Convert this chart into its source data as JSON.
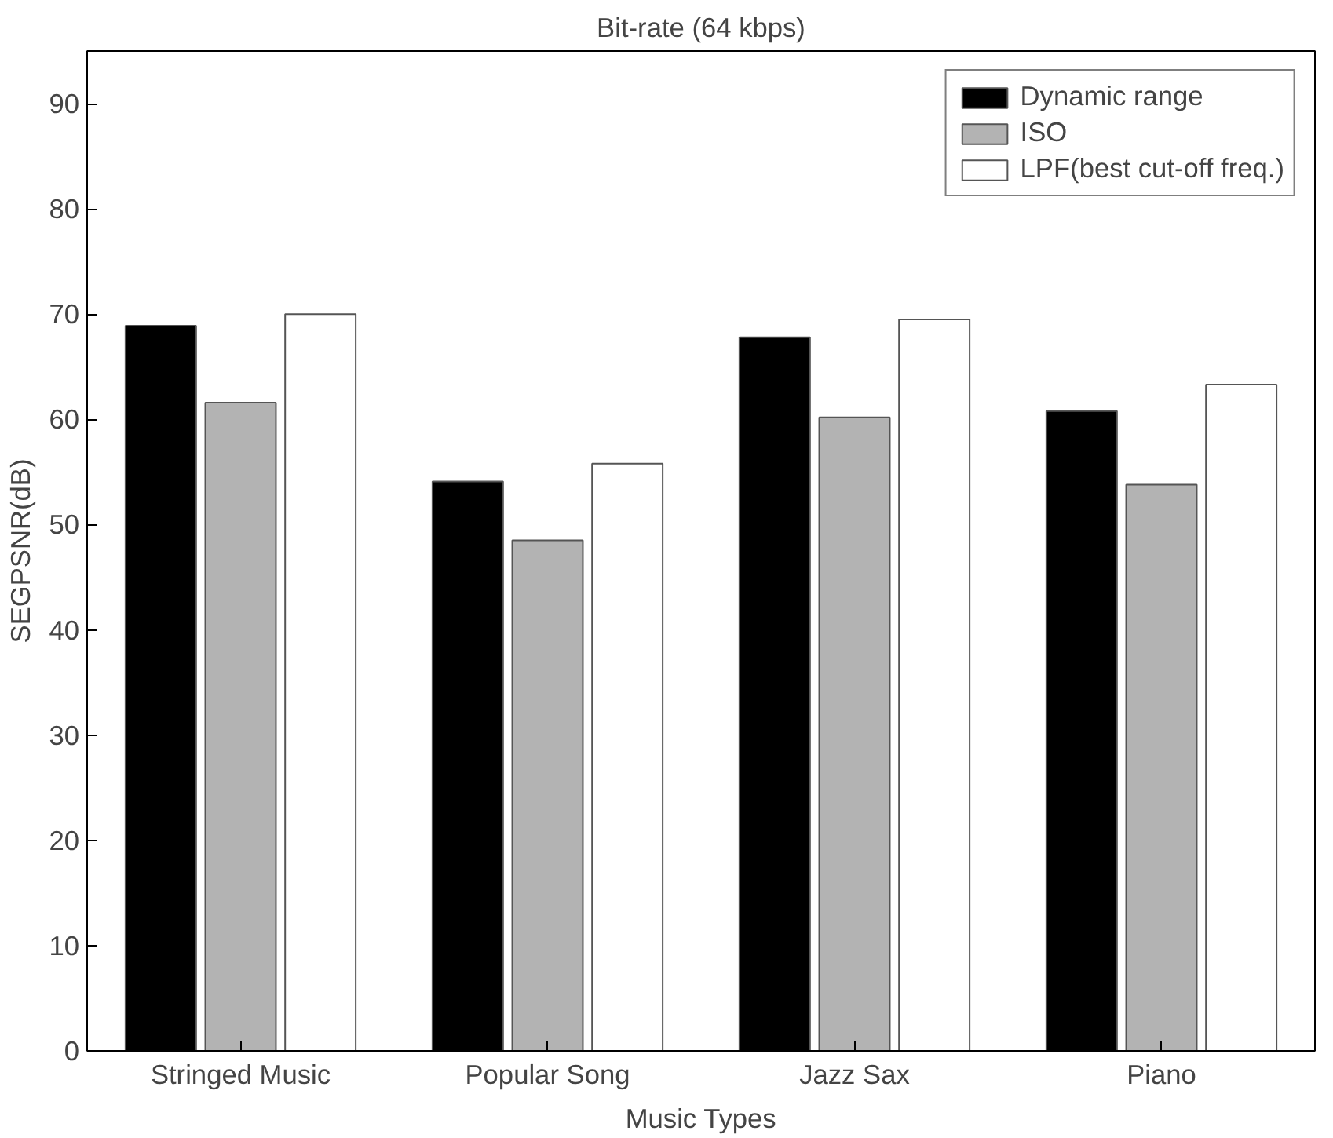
{
  "chart_data": {
    "type": "bar",
    "title": "Bit-rate (64 kbps)",
    "xlabel": "Music Types",
    "ylabel": "SEGPSNR(dB)",
    "categories": [
      "Stringed Music",
      "Popular Song",
      "Jazz Sax",
      "Piano"
    ],
    "series": [
      {
        "name": "Dynamic range",
        "color": "#000000",
        "values": [
          68.9,
          54.1,
          67.8,
          60.8
        ]
      },
      {
        "name": "ISO",
        "color": "#b3b3b3",
        "values": [
          61.6,
          48.5,
          60.2,
          53.8
        ]
      },
      {
        "name": "LPF(best cut-off freq.)",
        "color": "#ffffff",
        "values": [
          70.0,
          55.8,
          69.5,
          63.3
        ]
      }
    ],
    "ylim": [
      0,
      95
    ],
    "yticks": [
      0,
      10,
      20,
      30,
      40,
      50,
      60,
      70,
      80,
      90
    ],
    "grid": false,
    "legend": "top right"
  }
}
